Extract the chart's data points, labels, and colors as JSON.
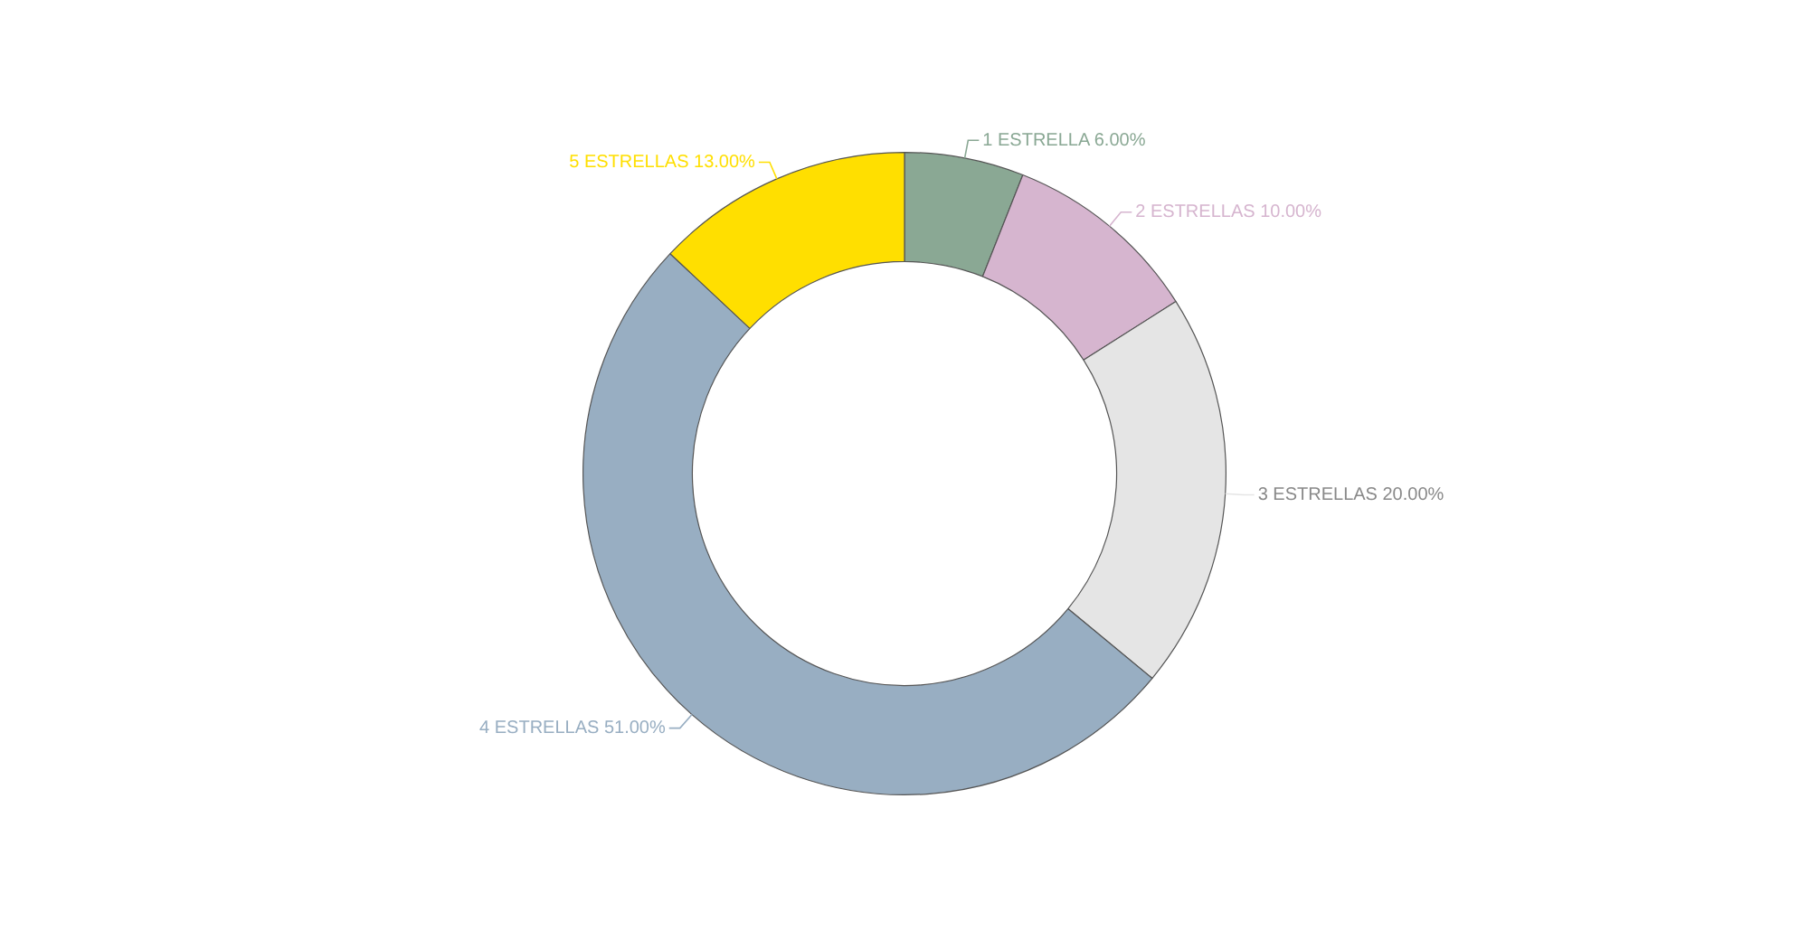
{
  "chart_data": {
    "type": "donut",
    "categories": [
      "1 ESTRELLA",
      "2 ESTRELLAS",
      "3 ESTRELLAS",
      "4 ESTRELLAS",
      "5 ESTRELLAS"
    ],
    "values": [
      6,
      10,
      20,
      51,
      13
    ],
    "colors": [
      "#8aa894",
      "#d6b5cf",
      "#e5e5e5",
      "#98aec2",
      "#ffdf00"
    ],
    "value_labels": [
      "6.00%",
      "10.00%",
      "20.00%",
      "51.00%",
      "13.00%"
    ]
  }
}
